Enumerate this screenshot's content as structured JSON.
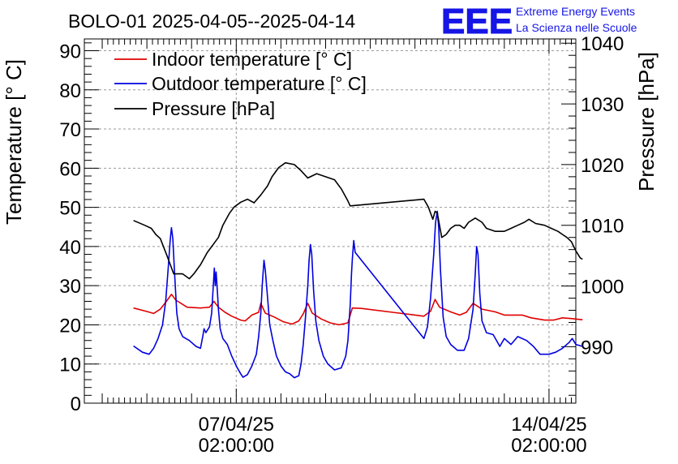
{
  "chart_data": {
    "type": "line",
    "title": "BOLO-01 2025-04-05--2025-04-14",
    "logo": {
      "text": "EEE",
      "line1": "Extreme Energy Events",
      "line2": "La Scienza nelle Scuole",
      "color": "#1515e6"
    },
    "ylabel_left": "Temperature [° C]",
    "ylabel_right": "Pressure [hPa]",
    "grid": true,
    "legend_position": "top-left",
    "ylim_left": [
      0,
      93
    ],
    "ylim_right": [
      980.7,
      1040.7
    ],
    "xlim": [
      -3.4,
      7.6
    ],
    "x_unit": "days relative to 07/04/25 02:00:00",
    "left_ticks": [
      "0",
      "10",
      "20",
      "30",
      "40",
      "50",
      "60",
      "70",
      "80",
      "90"
    ],
    "right_ticks": [
      "990",
      "1000",
      "1010",
      "1020",
      "1030",
      "1040"
    ],
    "x_ticks": [
      {
        "x": 0,
        "date": "07/04/25",
        "time": "02:00:00"
      },
      {
        "x": 7,
        "date": "14/04/25",
        "time": "02:00:00"
      }
    ],
    "series": [
      {
        "name": "Indoor temperature [° C]",
        "axis": "left",
        "color": "#e00000",
        "points": [
          [
            -2.3,
            24.3
          ],
          [
            -2.0,
            23.4
          ],
          [
            -1.85,
            22.9
          ],
          [
            -1.7,
            24.0
          ],
          [
            -1.55,
            26.2
          ],
          [
            -1.45,
            27.8
          ],
          [
            -1.35,
            26.3
          ],
          [
            -1.1,
            24.5
          ],
          [
            -0.8,
            24.3
          ],
          [
            -0.6,
            24.5
          ],
          [
            -0.5,
            26.0
          ],
          [
            -0.4,
            24.5
          ],
          [
            -0.25,
            23.2
          ],
          [
            -0.1,
            22.2
          ],
          [
            0.1,
            21.2
          ],
          [
            0.2,
            21.0
          ],
          [
            0.35,
            22.5
          ],
          [
            0.5,
            23.2
          ],
          [
            0.55,
            25.5
          ],
          [
            0.65,
            23.0
          ],
          [
            0.85,
            22.0
          ],
          [
            1.05,
            20.8
          ],
          [
            1.25,
            20.2
          ],
          [
            1.4,
            21.0
          ],
          [
            1.5,
            22.8
          ],
          [
            1.6,
            25.5
          ],
          [
            1.7,
            23.0
          ],
          [
            1.9,
            21.5
          ],
          [
            2.1,
            20.5
          ],
          [
            2.3,
            20.0
          ],
          [
            2.5,
            20.5
          ],
          [
            2.55,
            22.5
          ],
          [
            2.6,
            24.3
          ],
          [
            2.8,
            24.2
          ],
          [
            3.5,
            23.2
          ],
          [
            4.2,
            22.2
          ],
          [
            4.35,
            23.5
          ],
          [
            4.45,
            26.5
          ],
          [
            4.55,
            24.5
          ],
          [
            4.8,
            23.3
          ],
          [
            5.0,
            22.5
          ],
          [
            5.15,
            23.2
          ],
          [
            5.3,
            25.5
          ],
          [
            5.5,
            24.0
          ],
          [
            5.8,
            23.3
          ],
          [
            6.0,
            22.5
          ],
          [
            6.4,
            22.5
          ],
          [
            6.6,
            21.8
          ],
          [
            6.9,
            21.2
          ],
          [
            7.1,
            21.2
          ],
          [
            7.3,
            21.8
          ],
          [
            7.5,
            21.6
          ],
          [
            7.75,
            21.3
          ]
        ]
      },
      {
        "name": "Outdoor temperature [° C]",
        "axis": "left",
        "color": "#0000e0",
        "points": [
          [
            -2.3,
            14.6
          ],
          [
            -2.1,
            13.0
          ],
          [
            -1.95,
            12.5
          ],
          [
            -1.85,
            14.0
          ],
          [
            -1.75,
            16.5
          ],
          [
            -1.65,
            20.0
          ],
          [
            -1.58,
            26.0
          ],
          [
            -1.52,
            35.0
          ],
          [
            -1.48,
            41.5
          ],
          [
            -1.45,
            44.8
          ],
          [
            -1.42,
            42.0
          ],
          [
            -1.38,
            33.0
          ],
          [
            -1.33,
            23.0
          ],
          [
            -1.28,
            19.0
          ],
          [
            -1.2,
            17.0
          ],
          [
            -1.05,
            16.0
          ],
          [
            -0.9,
            14.5
          ],
          [
            -0.8,
            14.0
          ],
          [
            -0.75,
            17.0
          ],
          [
            -0.72,
            19.0
          ],
          [
            -0.68,
            18.0
          ],
          [
            -0.6,
            19.5
          ],
          [
            -0.55,
            23.0
          ],
          [
            -0.52,
            29.0
          ],
          [
            -0.49,
            34.5
          ],
          [
            -0.47,
            30.0
          ],
          [
            -0.45,
            33.5
          ],
          [
            -0.42,
            28.0
          ],
          [
            -0.4,
            24.0
          ],
          [
            -0.36,
            19.0
          ],
          [
            -0.3,
            16.5
          ],
          [
            -0.2,
            15.0
          ],
          [
            -0.1,
            12.0
          ],
          [
            0.0,
            9.5
          ],
          [
            0.1,
            7.5
          ],
          [
            0.15,
            6.6
          ],
          [
            0.25,
            7.3
          ],
          [
            0.35,
            9.5
          ],
          [
            0.45,
            12.5
          ],
          [
            0.5,
            17.0
          ],
          [
            0.55,
            23.0
          ],
          [
            0.58,
            30.0
          ],
          [
            0.62,
            36.5
          ],
          [
            0.65,
            34.0
          ],
          [
            0.7,
            27.0
          ],
          [
            0.75,
            20.0
          ],
          [
            0.82,
            16.0
          ],
          [
            0.9,
            12.0
          ],
          [
            1.0,
            9.5
          ],
          [
            1.1,
            8.0
          ],
          [
            1.2,
            7.5
          ],
          [
            1.3,
            6.5
          ],
          [
            1.4,
            7.0
          ],
          [
            1.45,
            10.0
          ],
          [
            1.5,
            15.0
          ],
          [
            1.55,
            22.0
          ],
          [
            1.6,
            30.0
          ],
          [
            1.63,
            36.5
          ],
          [
            1.66,
            40.5
          ],
          [
            1.69,
            38.0
          ],
          [
            1.73,
            29.0
          ],
          [
            1.78,
            21.0
          ],
          [
            1.85,
            16.0
          ],
          [
            1.95,
            12.0
          ],
          [
            2.05,
            10.0
          ],
          [
            2.2,
            8.5
          ],
          [
            2.35,
            9.0
          ],
          [
            2.45,
            12.0
          ],
          [
            2.5,
            16.0
          ],
          [
            2.55,
            25.0
          ],
          [
            2.58,
            33.0
          ],
          [
            2.6,
            37.0
          ],
          [
            2.63,
            41.5
          ],
          [
            2.66,
            38.5
          ],
          [
            4.2,
            16.5
          ],
          [
            4.28,
            19.5
          ],
          [
            4.35,
            27.0
          ],
          [
            4.42,
            38.0
          ],
          [
            4.46,
            46.0
          ],
          [
            4.5,
            49.0
          ],
          [
            4.53,
            45.0
          ],
          [
            4.57,
            34.0
          ],
          [
            4.63,
            22.0
          ],
          [
            4.7,
            17.0
          ],
          [
            4.8,
            15.0
          ],
          [
            4.95,
            13.5
          ],
          [
            5.1,
            13.5
          ],
          [
            5.2,
            16.5
          ],
          [
            5.3,
            24.0
          ],
          [
            5.35,
            33.0
          ],
          [
            5.38,
            40.0
          ],
          [
            5.41,
            38.0
          ],
          [
            5.45,
            28.0
          ],
          [
            5.5,
            21.0
          ],
          [
            5.6,
            18.0
          ],
          [
            5.75,
            17.5
          ],
          [
            5.9,
            14.5
          ],
          [
            6.0,
            16.5
          ],
          [
            6.15,
            15.0
          ],
          [
            6.3,
            17.0
          ],
          [
            6.5,
            16.0
          ],
          [
            6.65,
            14.5
          ],
          [
            6.8,
            12.5
          ],
          [
            7.0,
            12.5
          ],
          [
            7.15,
            13.0
          ],
          [
            7.3,
            14.0
          ],
          [
            7.45,
            15.5
          ],
          [
            7.52,
            16.5
          ],
          [
            7.6,
            15.0
          ],
          [
            7.75,
            14.5
          ]
        ]
      },
      {
        "name": "Pressure [hPa]",
        "axis": "right",
        "color": "#000000",
        "points": [
          [
            -2.3,
            1010.8
          ],
          [
            -2.05,
            1010.0
          ],
          [
            -1.9,
            1009.5
          ],
          [
            -1.8,
            1008.5
          ],
          [
            -1.7,
            1007.8
          ],
          [
            -1.55,
            1005.0
          ],
          [
            -1.4,
            1002.0
          ],
          [
            -1.2,
            1002.0
          ],
          [
            -1.05,
            1001.2
          ],
          [
            -0.95,
            1002.0
          ],
          [
            -0.8,
            1003.5
          ],
          [
            -0.65,
            1005.5
          ],
          [
            -0.5,
            1007.0
          ],
          [
            -0.4,
            1008.0
          ],
          [
            -0.3,
            1010.0
          ],
          [
            -0.15,
            1012.0
          ],
          [
            -0.05,
            1013.0
          ],
          [
            0.1,
            1013.8
          ],
          [
            0.25,
            1014.3
          ],
          [
            0.4,
            1013.7
          ],
          [
            0.55,
            1015.0
          ],
          [
            0.7,
            1016.5
          ],
          [
            0.8,
            1018.0
          ],
          [
            0.95,
            1019.5
          ],
          [
            1.1,
            1020.3
          ],
          [
            1.3,
            1020.0
          ],
          [
            1.45,
            1019.0
          ],
          [
            1.6,
            1017.8
          ],
          [
            1.8,
            1018.5
          ],
          [
            2.0,
            1018.0
          ],
          [
            2.2,
            1017.5
          ],
          [
            2.35,
            1016.0
          ],
          [
            2.5,
            1014.0
          ],
          [
            2.55,
            1013.2
          ],
          [
            4.2,
            1014.3
          ],
          [
            4.3,
            1013.0
          ],
          [
            4.4,
            1011.0
          ],
          [
            4.45,
            1012.3
          ],
          [
            4.5,
            1012.0
          ],
          [
            4.6,
            1008.0
          ],
          [
            4.7,
            1008.5
          ],
          [
            4.8,
            1009.5
          ],
          [
            4.9,
            1010.0
          ],
          [
            5.0,
            1010.0
          ],
          [
            5.1,
            1009.5
          ],
          [
            5.2,
            1010.5
          ],
          [
            5.35,
            1011.2
          ],
          [
            5.5,
            1010.5
          ],
          [
            5.6,
            1009.5
          ],
          [
            5.8,
            1009.0
          ],
          [
            6.0,
            1009.0
          ],
          [
            6.15,
            1009.5
          ],
          [
            6.3,
            1010.0
          ],
          [
            6.45,
            1010.5
          ],
          [
            6.55,
            1011.0
          ],
          [
            6.7,
            1010.3
          ],
          [
            6.9,
            1010.0
          ],
          [
            7.05,
            1009.5
          ],
          [
            7.2,
            1009.0
          ],
          [
            7.3,
            1008.5
          ],
          [
            7.4,
            1008.0
          ],
          [
            7.5,
            1007.3
          ],
          [
            7.6,
            1005.8
          ],
          [
            7.7,
            1004.6
          ],
          [
            7.75,
            1004.4
          ]
        ]
      }
    ]
  }
}
